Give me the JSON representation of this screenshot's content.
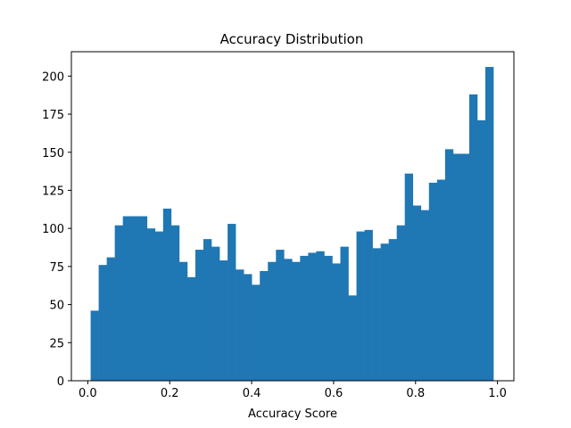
{
  "chart_data": {
    "type": "bar",
    "title": "Accuracy Distribution",
    "xlabel": "Accuracy Score",
    "ylabel": "",
    "xlim": [
      -0.04,
      1.04
    ],
    "ylim": [
      0,
      216
    ],
    "bin_start": 0.007,
    "bin_end": 0.99,
    "bar_color": "#1f77b4",
    "grid": false,
    "x_ticks": [
      0.0,
      0.2,
      0.4,
      0.6,
      0.8,
      1.0
    ],
    "x_tick_labels": [
      "0.0",
      "0.2",
      "0.4",
      "0.6",
      "0.8",
      "1.0"
    ],
    "y_ticks": [
      0,
      25,
      50,
      75,
      100,
      125,
      150,
      175,
      200
    ],
    "y_tick_labels": [
      "0",
      "25",
      "50",
      "75",
      "100",
      "125",
      "150",
      "175",
      "200"
    ],
    "values": [
      46,
      76,
      81,
      102,
      108,
      108,
      108,
      100,
      98,
      113,
      102,
      78,
      68,
      86,
      93,
      88,
      79,
      103,
      73,
      70,
      63,
      72,
      78,
      86,
      80,
      78,
      82,
      84,
      85,
      82,
      77,
      88,
      56,
      98,
      99,
      87,
      90,
      93,
      102,
      136,
      115,
      112,
      130,
      132,
      152,
      149,
      149,
      188,
      171,
      206
    ]
  }
}
